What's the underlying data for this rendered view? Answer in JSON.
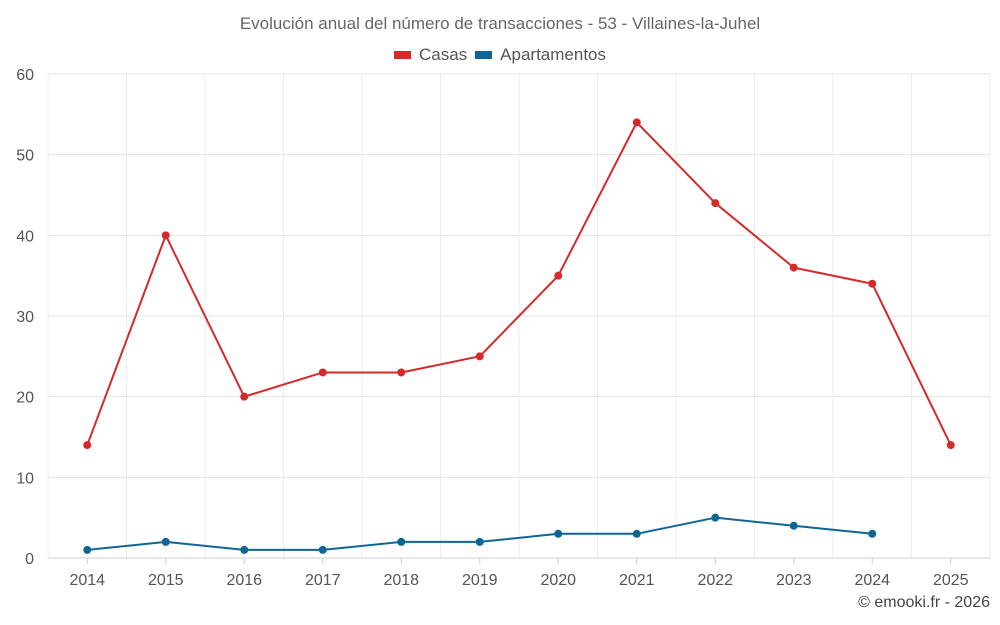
{
  "chart_data": {
    "type": "line",
    "title": "Evolución anual del número de transacciones - 53 - Villaines-la-Juhel",
    "categories": [
      "2014",
      "2015",
      "2016",
      "2017",
      "2018",
      "2019",
      "2020",
      "2021",
      "2022",
      "2023",
      "2024",
      "2025"
    ],
    "series": [
      {
        "name": "Casas",
        "color": "#d42a2a",
        "values": [
          14,
          40,
          20,
          23,
          23,
          25,
          35,
          54,
          44,
          36,
          34,
          14
        ]
      },
      {
        "name": "Apartamentos",
        "color": "#0f6696",
        "values": [
          1,
          2,
          1,
          1,
          2,
          2,
          3,
          3,
          5,
          4,
          3,
          null
        ]
      }
    ],
    "ylim": [
      0,
      60
    ],
    "yticks": [
      "0",
      "10",
      "20",
      "30",
      "40",
      "50",
      "60"
    ],
    "grid": true,
    "legend_position": "top-center",
    "xlabel": "",
    "ylabel": ""
  },
  "credit": "© emooki.fr - 2026"
}
